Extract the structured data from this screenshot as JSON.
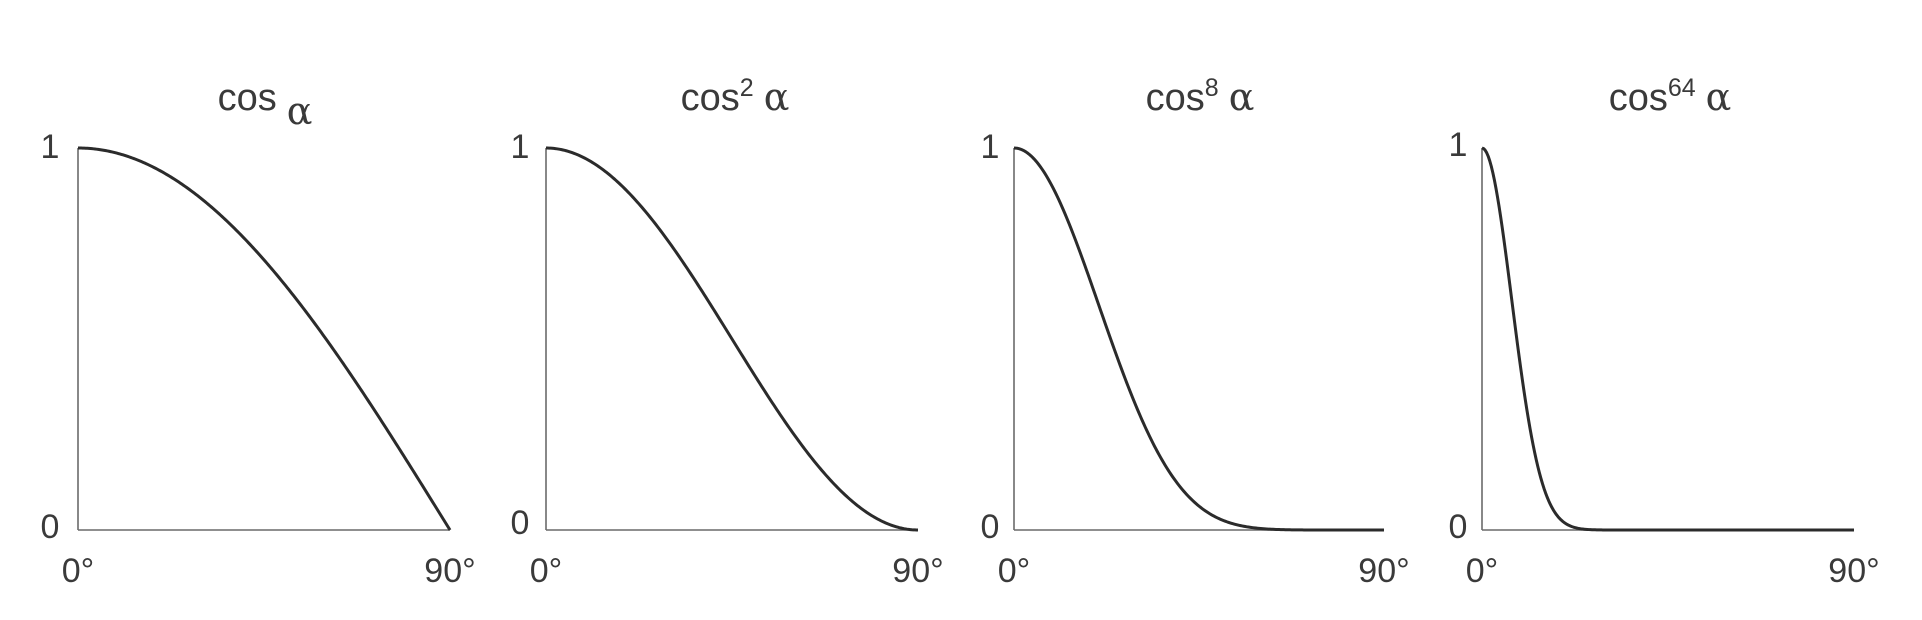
{
  "chart_data": [
    {
      "type": "line",
      "title": "cos α",
      "title_base": "cos",
      "title_exp": "",
      "title_var": "α",
      "exponent": 1,
      "xlim": [
        0,
        90
      ],
      "ylim": [
        0,
        1
      ],
      "xticks": [
        "0°",
        "90°"
      ],
      "yticks": [
        "0",
        "1"
      ],
      "x": [
        0,
        10,
        20,
        30,
        40,
        50,
        60,
        70,
        80,
        90
      ],
      "y": [
        1.0,
        0.985,
        0.94,
        0.866,
        0.766,
        0.643,
        0.5,
        0.342,
        0.174,
        0.0
      ]
    },
    {
      "type": "line",
      "title": "cos2 α",
      "title_base": "cos",
      "title_exp": "2",
      "title_var": "α",
      "exponent": 2,
      "xlim": [
        0,
        90
      ],
      "ylim": [
        0,
        1
      ],
      "xticks": [
        "0°",
        "90°"
      ],
      "yticks": [
        "0",
        "1"
      ],
      "x": [
        0,
        10,
        20,
        30,
        40,
        50,
        60,
        70,
        80,
        90
      ],
      "y": [
        1.0,
        0.97,
        0.883,
        0.75,
        0.587,
        0.413,
        0.25,
        0.117,
        0.03,
        0.0
      ]
    },
    {
      "type": "line",
      "title": "cos8 α",
      "title_base": "cos",
      "title_exp": "8",
      "title_var": "α",
      "exponent": 8,
      "xlim": [
        0,
        90
      ],
      "ylim": [
        0,
        1
      ],
      "xticks": [
        "0°",
        "90°"
      ],
      "yticks": [
        "0",
        "1"
      ],
      "x": [
        0,
        10,
        20,
        30,
        40,
        50,
        60,
        70,
        80,
        90
      ],
      "y": [
        1.0,
        0.885,
        0.608,
        0.316,
        0.119,
        0.029,
        0.004,
        0.0,
        0.0,
        0.0
      ]
    },
    {
      "type": "line",
      "title": "cos64 α",
      "title_base": "cos",
      "title_exp": "64",
      "title_var": "α",
      "exponent": 64,
      "xlim": [
        0,
        90
      ],
      "ylim": [
        0,
        1
      ],
      "xticks": [
        "0°",
        "90°"
      ],
      "yticks": [
        "0",
        "1"
      ],
      "x": [
        0,
        5,
        10,
        15,
        20,
        25,
        30,
        40,
        60,
        90
      ],
      "y": [
        1.0,
        0.783,
        0.377,
        0.105,
        0.019,
        0.002,
        0.0,
        0.0,
        0.0,
        0.0
      ]
    }
  ]
}
